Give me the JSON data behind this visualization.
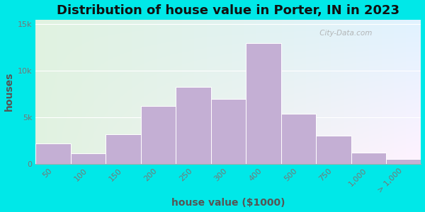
{
  "title": "Distribution of house value in Porter, IN in 2023",
  "xlabel": "house value ($1000)",
  "ylabel": "houses",
  "bar_labels": [
    "50",
    "100",
    "150",
    "200",
    "250",
    "300",
    "400",
    "500",
    "750",
    "1,000",
    "> 1,000"
  ],
  "bar_values": [
    2200,
    1100,
    3200,
    6200,
    8300,
    7000,
    13000,
    5400,
    3000,
    1200,
    500
  ],
  "bar_left_edges": [
    0,
    1,
    2,
    3,
    4,
    5,
    6,
    7,
    8,
    9,
    10
  ],
  "bar_widths": [
    1,
    1,
    1,
    1,
    1,
    1,
    1,
    1,
    1,
    1,
    1
  ],
  "bar_color": "#c4afd4",
  "bar_edge_color": "#ffffff",
  "bg_outer": "#00e8e8",
  "bg_plot": "#dff2e0",
  "title_fontsize": 13,
  "axis_label_fontsize": 10,
  "tick_fontsize": 8,
  "ytick_labels": [
    "0",
    "5k",
    "10k",
    "15k"
  ],
  "ytick_values": [
    0,
    5000,
    10000,
    15000
  ],
  "ylim": [
    0,
    15500
  ],
  "title_color": "#111111",
  "label_color": "#555555",
  "axis_text_color": "#777777",
  "watermark_text": " City-Data.com"
}
